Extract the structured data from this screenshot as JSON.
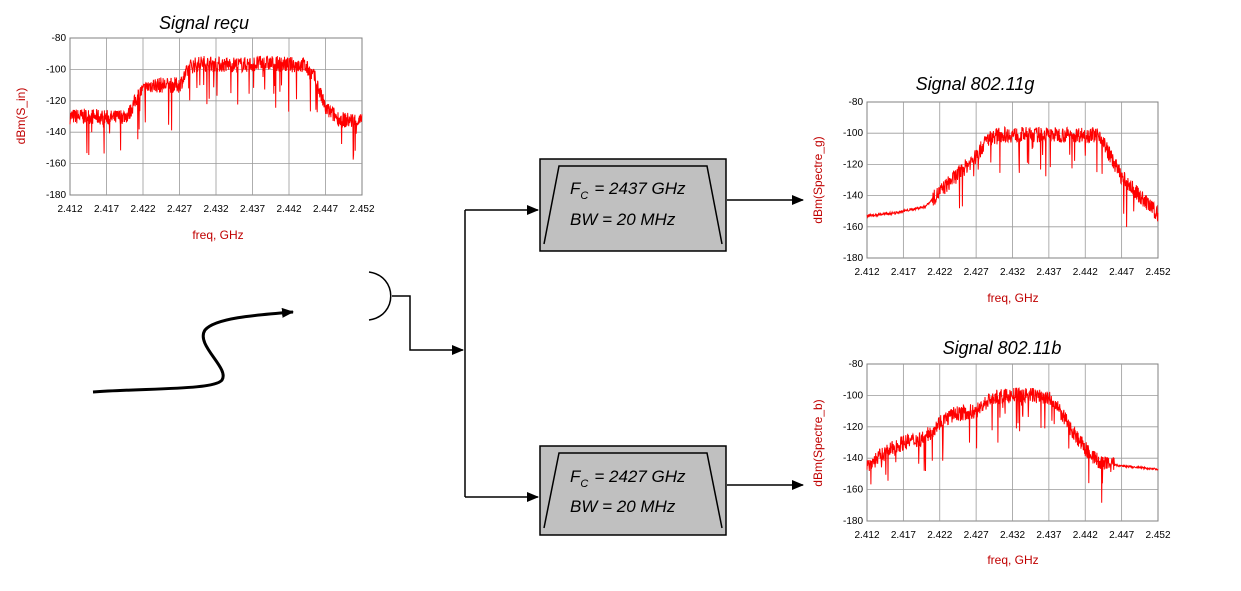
{
  "diagram": {
    "filters": [
      {
        "fc_symbol": "F",
        "fc_sub": "C",
        "fc_value": "= 2437 GHz",
        "bw": "BW = 20 MHz"
      },
      {
        "fc_symbol": "F",
        "fc_sub": "C",
        "fc_value": "= 2427 GHz",
        "bw": "BW = 20 MHz"
      }
    ]
  },
  "chart_data": [
    {
      "type": "line",
      "title": "Signal reçu",
      "xlabel": "freq, GHz",
      "ylabel": "dBm(S_in)",
      "xlim": [
        2.412,
        2.452
      ],
      "ylim": [
        -180,
        -80
      ],
      "xticks": [
        "2.412",
        "2.417",
        "2.422",
        "2.427",
        "2.432",
        "2.437",
        "2.442",
        "2.447",
        "2.452"
      ],
      "yticks": [
        "-80",
        "-100",
        "-120",
        "-140",
        "-160",
        "-180"
      ],
      "grid": true,
      "color": "#ff0000",
      "x": [
        2.412,
        2.415,
        2.418,
        2.42,
        2.4215,
        2.423,
        2.425,
        2.427,
        2.4285,
        2.43,
        2.433,
        2.436,
        2.439,
        2.442,
        2.444,
        2.4455,
        2.447,
        2.449,
        2.452
      ],
      "y": [
        -130,
        -130,
        -131,
        -129,
        -115,
        -110,
        -110,
        -110,
        -98,
        -96,
        -97,
        -97,
        -96,
        -97,
        -97,
        -105,
        -125,
        -132,
        -133
      ]
    },
    {
      "type": "line",
      "title": "Signal 802.11g",
      "xlabel": "freq, GHz",
      "ylabel": "dBm(Spectre_g)",
      "xlim": [
        2.412,
        2.452
      ],
      "ylim": [
        -180,
        -80
      ],
      "xticks": [
        "2.412",
        "2.417",
        "2.422",
        "2.427",
        "2.432",
        "2.437",
        "2.442",
        "2.447",
        "2.452"
      ],
      "yticks": [
        "-80",
        "-100",
        "-120",
        "-140",
        "-160",
        "-180"
      ],
      "grid": true,
      "color": "#ff0000",
      "x": [
        2.412,
        2.416,
        2.42,
        2.4215,
        2.423,
        2.425,
        2.427,
        2.4285,
        2.43,
        2.433,
        2.436,
        2.439,
        2.442,
        2.444,
        2.4455,
        2.447,
        2.449,
        2.452
      ],
      "y": [
        -153,
        -151,
        -147,
        -140,
        -133,
        -124,
        -115,
        -104,
        -101,
        -101,
        -101,
        -101,
        -101,
        -101,
        -115,
        -128,
        -138,
        -152
      ]
    },
    {
      "type": "line",
      "title": "Signal 802.11b",
      "xlabel": "freq, GHz",
      "ylabel": "dBm(Spectre_b)",
      "xlim": [
        2.412,
        2.452
      ],
      "ylim": [
        -180,
        -80
      ],
      "xticks": [
        "2.412",
        "2.417",
        "2.422",
        "2.427",
        "2.432",
        "2.437",
        "2.442",
        "2.447",
        "2.452"
      ],
      "yticks": [
        "-80",
        "-100",
        "-120",
        "-140",
        "-160",
        "-180"
      ],
      "grid": true,
      "color": "#ff0000",
      "x": [
        2.412,
        2.414,
        2.417,
        2.42,
        2.422,
        2.424,
        2.427,
        2.429,
        2.432,
        2.435,
        2.437,
        2.4385,
        2.44,
        2.442,
        2.444,
        2.447,
        2.452
      ],
      "y": [
        -145,
        -138,
        -130,
        -127,
        -117,
        -112,
        -110,
        -102,
        -100,
        -100,
        -102,
        -110,
        -121,
        -134,
        -143,
        -145,
        -147
      ]
    }
  ]
}
